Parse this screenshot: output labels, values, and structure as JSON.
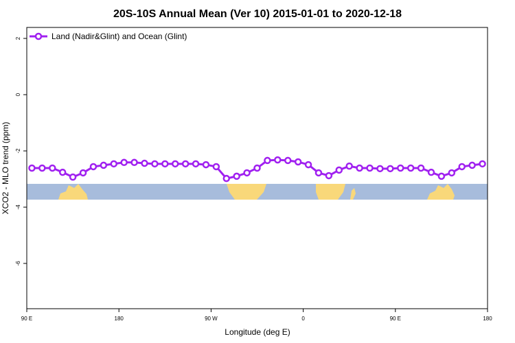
{
  "chart_data": {
    "type": "line",
    "title": "20S-10S Annual Mean (Ver 10)   2015-01-01 to 2020-12-18",
    "x_label": "Longitude (deg E)",
    "y_label": "XCO2 - MLO trend (ppm)",
    "x": [
      95,
      105,
      115,
      125,
      135,
      145,
      155,
      165,
      175,
      185,
      195,
      205,
      215,
      225,
      235,
      245,
      255,
      265,
      275,
      285,
      295,
      305,
      315,
      325,
      335,
      345,
      355,
      365,
      375,
      385,
      395,
      405,
      415,
      425,
      435,
      445,
      455,
      465,
      475,
      485,
      495,
      505,
      515,
      525,
      535
    ],
    "series": [
      {
        "name": "Land (Nadir&Glint) and Ocean (Glint)",
        "color": "#a020f0",
        "values": [
          -2.61,
          -2.61,
          -2.61,
          -2.76,
          -2.93,
          -2.78,
          -2.56,
          -2.51,
          -2.46,
          -2.41,
          -2.41,
          -2.44,
          -2.46,
          -2.46,
          -2.46,
          -2.46,
          -2.46,
          -2.49,
          -2.56,
          -2.98,
          -2.9,
          -2.78,
          -2.61,
          -2.34,
          -2.32,
          -2.34,
          -2.39,
          -2.49,
          -2.78,
          -2.88,
          -2.68,
          -2.54,
          -2.61,
          -2.61,
          -2.63,
          -2.63,
          -2.61,
          -2.61,
          -2.61,
          -2.76,
          -2.9,
          -2.78,
          -2.56,
          -2.51,
          -2.46
        ]
      }
    ],
    "xlim": [
      90,
      540
    ],
    "xticks": [
      {
        "value": 90,
        "label": "90 E"
      },
      {
        "value": 180,
        "label": "180"
      },
      {
        "value": 270,
        "label": "90 W"
      },
      {
        "value": 360,
        "label": "0"
      },
      {
        "value": 450,
        "label": "90 E"
      },
      {
        "value": 540,
        "label": "180"
      }
    ],
    "ylim": [
      -7.61,
      2.39
    ],
    "yticks": [
      2,
      0,
      -2,
      -4,
      -6
    ],
    "legend": "top-left"
  }
}
